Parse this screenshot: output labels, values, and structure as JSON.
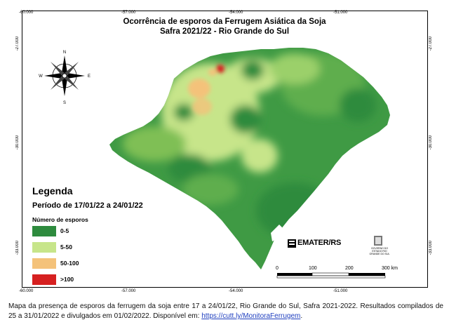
{
  "map": {
    "title_line1": "Ocorrência de esporos da Ferrugem Asiática da Soja",
    "title_line2": "Safra 2021/22 - Rio Grande do Sul",
    "top_ticks": [
      "-60.000",
      "-57.000",
      "-54.000",
      "-51.000"
    ],
    "bottom_ticks": [
      "-60.000",
      "-57.000",
      "-54.000",
      "-51.000"
    ],
    "left_ticks": [
      "-27.000",
      "-30.000",
      "-33.000"
    ],
    "right_ticks": [
      "-27.000",
      "-30.000",
      "-33.000"
    ],
    "compass": {
      "n": "N",
      "s": "S",
      "e": "E",
      "w": "W"
    }
  },
  "legend": {
    "title": "Legenda",
    "period": "Período de 17/01/22 a 24/01/22",
    "subtitle": "Número de esporos",
    "items": [
      {
        "label": "0-5",
        "color": "#2e8b3e"
      },
      {
        "label": "5-50",
        "color": "#c7e58a"
      },
      {
        "label": "50-100",
        "color": "#f4c27a"
      },
      {
        "label": ">100",
        "color": "#d62020"
      }
    ]
  },
  "scale": {
    "labels": [
      "0",
      "100",
      "200",
      "300 km"
    ]
  },
  "logos": {
    "emater": "EMATER/RS",
    "gov_text": "GOVERNO DO ESTADO RIO GRANDE DO SUL"
  },
  "caption": {
    "text": "Mapa da presença de esporos da ferrugem da soja entre 17 a 24/01/22, Rio Grande do Sul, Safra 2021-2022. Resultados compilados de 25 a 31/01/2022 e divulgados em 01/02/2022. Disponível em: ",
    "link": "https://cutt.ly/MonitoraFerrugem",
    "end": "."
  }
}
